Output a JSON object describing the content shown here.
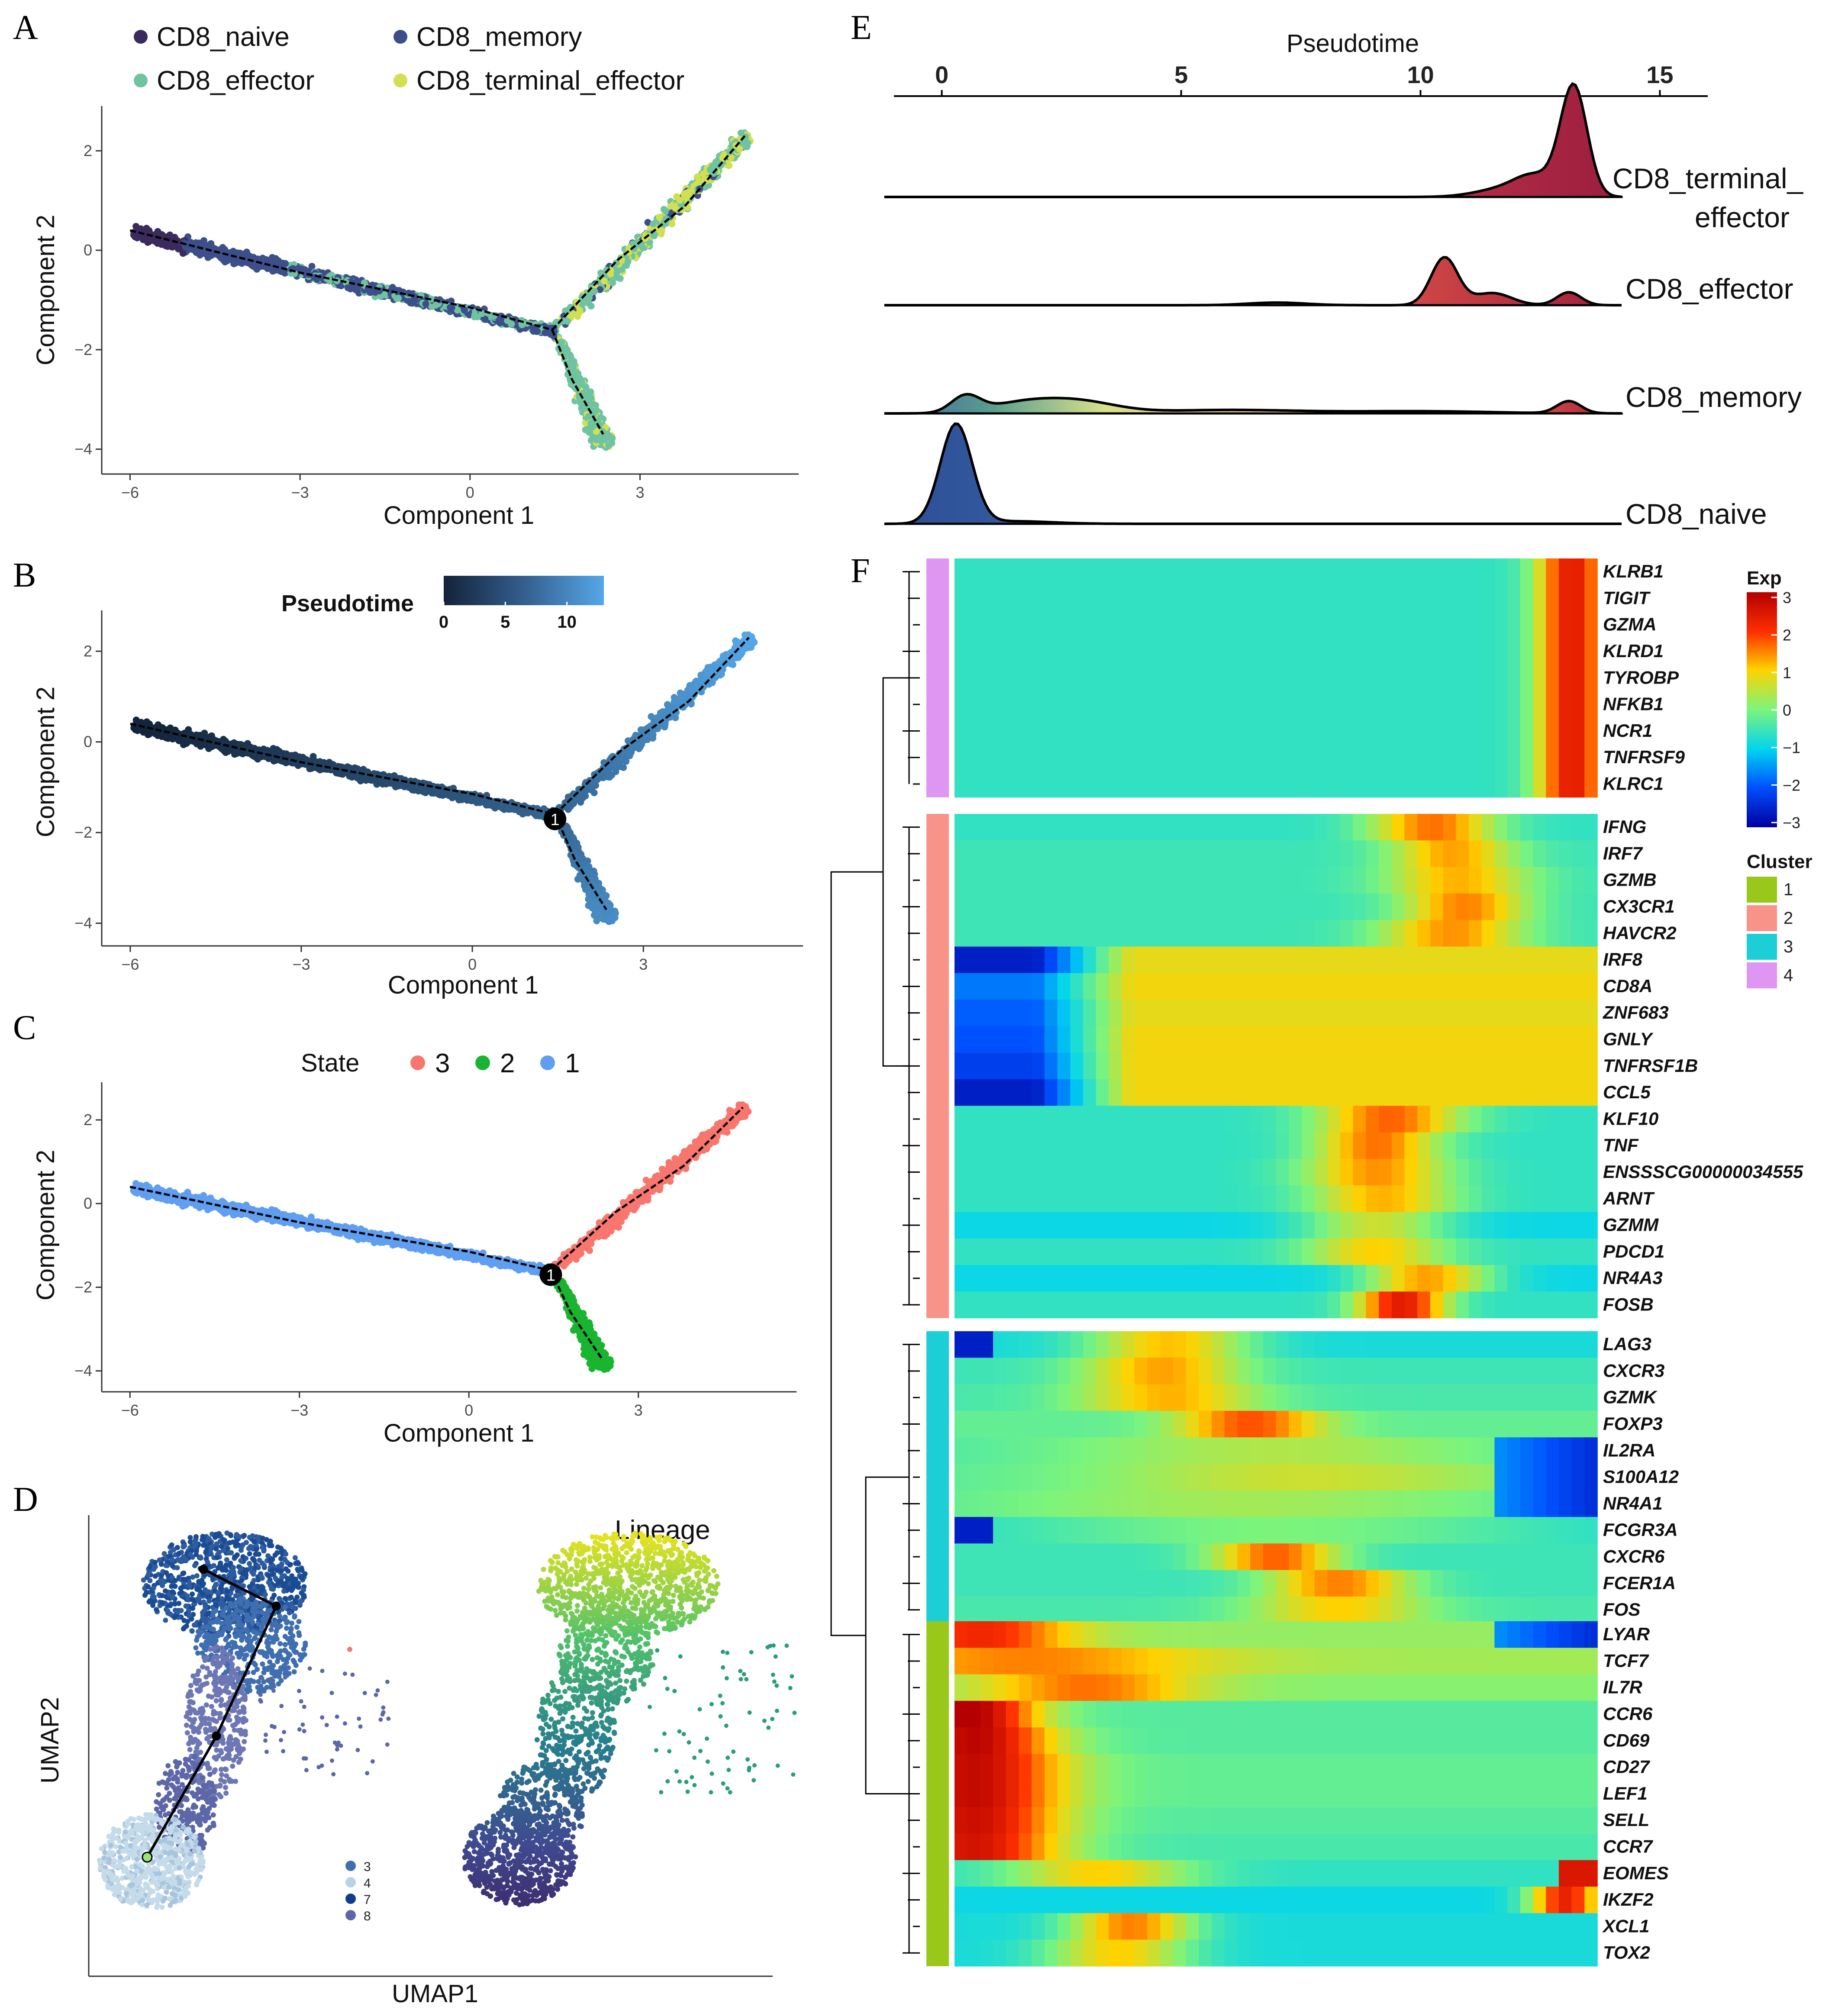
{
  "panels": {
    "A": "A",
    "B": "B",
    "C": "C",
    "D": "D",
    "E": "E",
    "F": "F"
  },
  "colors": {
    "naive": "#3a2b5c",
    "memory": "#3c4f8a",
    "effector": "#6fc3a0",
    "terminal": "#d2df52",
    "state1": "#5f9ef0",
    "state2": "#19b531",
    "state3": "#f8766d",
    "pt_low": "#13233a",
    "pt_high": "#55a7e8",
    "cluster1": "#9ac81a",
    "cluster2": "#f89389",
    "cluster3": "#1ccfd6",
    "cluster4": "#df95f2"
  },
  "panel_a": {
    "legend": [
      {
        "label": "CD8_naive",
        "color": "#3a2b5c"
      },
      {
        "label": "CD8_memory",
        "color": "#3c4f8a"
      },
      {
        "label": "CD8_effector",
        "color": "#6fc3a0"
      },
      {
        "label": "CD8_terminal_effector",
        "color": "#d2df52"
      }
    ],
    "xlabel": "Component 1",
    "ylabel": "Component 2"
  },
  "panel_b": {
    "legend_title": "Pseudotime",
    "legend_ticks": [
      "0",
      "5",
      "10"
    ],
    "xlabel": "Component 1",
    "ylabel": "Component 2",
    "branch_label": "1"
  },
  "panel_c": {
    "legend_title": "State",
    "states": [
      {
        "label": "3",
        "color": "#f8766d"
      },
      {
        "label": "2",
        "color": "#19b531"
      },
      {
        "label": "1",
        "color": "#5f9ef0"
      }
    ],
    "xlabel": "Component 1",
    "ylabel": "Component 2",
    "branch_label": "1"
  },
  "panel_d": {
    "xlabel": "UMAP1",
    "ylabel": "UMAP2",
    "lineage_label": "Lineage",
    "cluster_legend": [
      {
        "label": "3",
        "color": "#3f6fb0"
      },
      {
        "label": "4",
        "color": "#b9d3e6"
      },
      {
        "label": "7",
        "color": "#0f3c8c"
      },
      {
        "label": "8",
        "color": "#5d67a8"
      }
    ]
  },
  "panel_e": {
    "axis_title": "Pseudotime",
    "ticks": [
      "0",
      "5",
      "10",
      "15"
    ],
    "ridges": [
      {
        "label_lines": [
          "CD8_terminal_",
          "effector"
        ]
      },
      {
        "label_lines": [
          "CD8_effector"
        ]
      },
      {
        "label_lines": [
          "CD8_memory"
        ]
      },
      {
        "label_lines": [
          "CD8_naive"
        ]
      }
    ]
  },
  "panel_f": {
    "exp_title": "Exp",
    "exp_ticks": [
      "3",
      "2",
      "1",
      "0",
      "−1",
      "−2",
      "−3"
    ],
    "cluster_title": "Cluster",
    "cluster_legend": [
      "1",
      "2",
      "3",
      "4"
    ],
    "blocks": [
      {
        "cluster": 4,
        "genes": [
          "KLRB1",
          "TIGIT",
          "GZMA",
          "KLRD1",
          "TYROBP",
          "NFKB1",
          "NCR1",
          "TNFRSF9",
          "KLRC1"
        ]
      },
      {
        "cluster": 2,
        "genes": [
          "IFNG",
          "IRF7",
          "GZMB",
          "CX3CR1",
          "HAVCR2",
          "IRF8",
          "CD8A",
          "ZNF683",
          "GNLY",
          "TNFRSF1B",
          "CCL5",
          "KLF10",
          "TNF",
          "ENSSSCG00000034555",
          "ARNT",
          "GZMM",
          "PDCD1",
          "NR4A3",
          "FOSB"
        ]
      },
      {
        "cluster": 3,
        "genes": [
          "LAG3",
          "CXCR3",
          "GZMK",
          "FOXP3",
          "IL2RA",
          "S100A12",
          "NR4A1",
          "FCGR3A",
          "CXCR6",
          "FCER1A",
          "FOS"
        ]
      },
      {
        "cluster": 1,
        "genes": [
          "LYAR",
          "TCF7",
          "IL7R",
          "CCR6",
          "CD69",
          "CD27",
          "LEF1",
          "SELL",
          "CCR7",
          "EOMES",
          "IKZF2",
          "XCL1",
          "TOX2"
        ]
      }
    ]
  },
  "chart_data": [
    {
      "panel": "A",
      "type": "scatter",
      "title": "",
      "xlabel": "Component 1",
      "ylabel": "Component 2",
      "xticks": [
        "−6",
        "−3",
        "0",
        "3"
      ],
      "yticks": [
        "−4",
        "−2",
        "0",
        "2"
      ],
      "xlim": [
        -6.5,
        5.8
      ],
      "ylim": [
        -4.5,
        2.9
      ],
      "series": [
        {
          "name": "CD8_naive"
        },
        {
          "name": "CD8_memory"
        },
        {
          "name": "CD8_effector"
        },
        {
          "name": "CD8_terminal_effector"
        }
      ],
      "trajectory": [
        [
          -6,
          0.4
        ],
        [
          -3,
          -0.5
        ],
        [
          0,
          -1.2
        ],
        [
          1.5,
          -1.6
        ],
        [
          4.9,
          2.3
        ]
      ],
      "branch2": [
        [
          1.5,
          -1.6
        ],
        [
          2.4,
          -3.7
        ]
      ]
    },
    {
      "panel": "B",
      "type": "scatter",
      "title": "",
      "xlabel": "Component 1",
      "ylabel": "Component 2",
      "xticks": [
        "−6",
        "−3",
        "0",
        "3"
      ],
      "yticks": [
        "−4",
        "−2",
        "0",
        "2"
      ],
      "xlim": [
        -6.5,
        5.8
      ],
      "ylim": [
        -4.5,
        2.9
      ],
      "color_by": "Pseudotime",
      "color_range": [
        0,
        13
      ]
    },
    {
      "panel": "C",
      "type": "scatter",
      "title": "",
      "xlabel": "Component 1",
      "ylabel": "Component 2",
      "xticks": [
        "−6",
        "−3",
        "0",
        "3"
      ],
      "yticks": [
        "−4",
        "−2",
        "0",
        "2"
      ],
      "xlim": [
        -6.5,
        5.8
      ],
      "ylim": [
        -4.5,
        2.9
      ],
      "series": [
        {
          "name": "1",
          "segment": "trunk"
        },
        {
          "name": "2",
          "segment": "lower branch"
        },
        {
          "name": "3",
          "segment": "upper branch"
        }
      ]
    },
    {
      "panel": "D",
      "type": "scatter",
      "title": "",
      "xlabel": "UMAP1",
      "ylabel": "UMAP2",
      "clusters": [
        "3",
        "4",
        "7",
        "8"
      ]
    },
    {
      "panel": "E",
      "type": "area",
      "title": "",
      "xlabel": "Pseudotime",
      "xlim": [
        -1,
        16
      ],
      "xticks": [
        0,
        5,
        10,
        15
      ],
      "series": [
        {
          "name": "CD8_terminal_effector",
          "peak_x": 13.2
        },
        {
          "name": "CD8_effector",
          "peak_x": 10.5,
          "secondary_peaks": [
            11.5,
            13.1
          ]
        },
        {
          "name": "CD8_memory",
          "peak_x": 0.5,
          "secondary_peaks": [
            2.8,
            13.1
          ]
        },
        {
          "name": "CD8_naive",
          "peak_x": 0.3
        }
      ]
    },
    {
      "panel": "F",
      "type": "heatmap",
      "title": "",
      "color_scale": "Exp",
      "zlim": [
        -3,
        3
      ],
      "rows": [
        "KLRB1",
        "TIGIT",
        "GZMA",
        "KLRD1",
        "TYROBP",
        "NFKB1",
        "NCR1",
        "TNFRSF9",
        "KLRC1",
        "IFNG",
        "IRF7",
        "GZMB",
        "CX3CR1",
        "HAVCR2",
        "IRF8",
        "CD8A",
        "ZNF683",
        "GNLY",
        "TNFRSF1B",
        "CCL5",
        "KLF10",
        "TNF",
        "ENSSSCG00000034555",
        "ARNT",
        "GZMM",
        "PDCD1",
        "NR4A3",
        "FOSB",
        "LAG3",
        "CXCR3",
        "GZMK",
        "FOXP3",
        "IL2RA",
        "S100A12",
        "NR4A1",
        "FCGR3A",
        "CXCR6",
        "FCER1A",
        "FOS",
        "LYAR",
        "TCF7",
        "IL7R",
        "CCR6",
        "CD69",
        "CD27",
        "LEF1",
        "SELL",
        "CCR7",
        "EOMES",
        "IKZF2",
        "XCL1",
        "TOX2"
      ],
      "clusters": {
        "4": 9,
        "2": 19,
        "3": 11,
        "1": 13
      }
    }
  ]
}
